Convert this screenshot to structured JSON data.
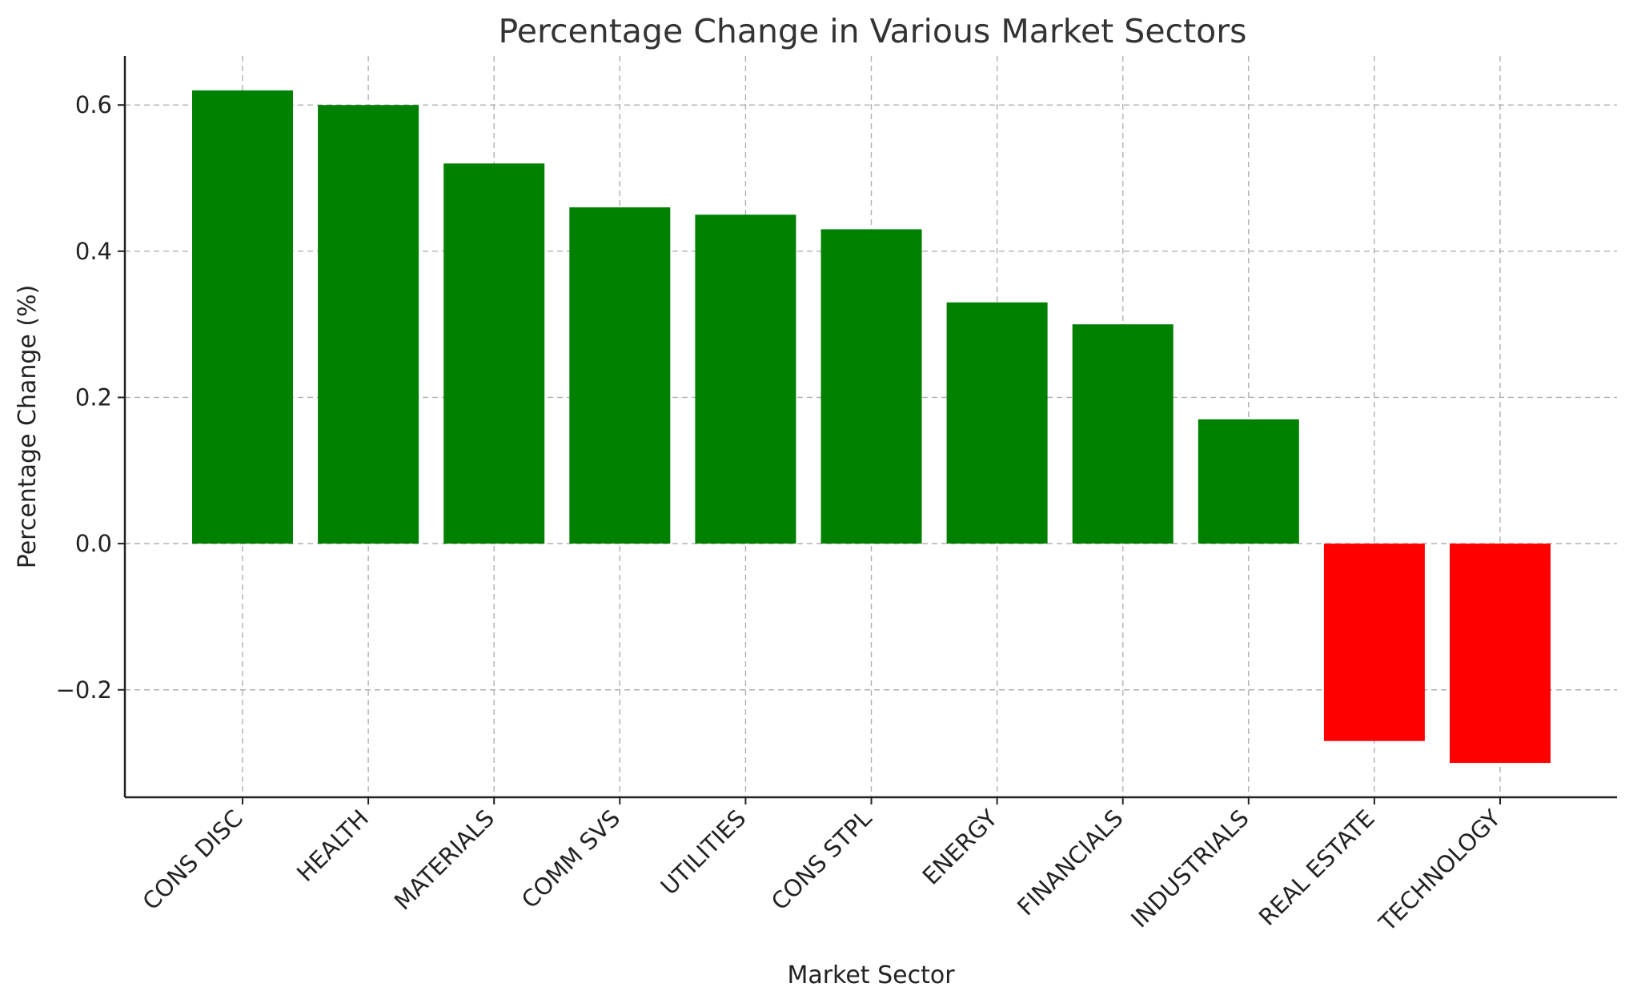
{
  "chart_data": {
    "type": "bar",
    "title": "Percentage Change in Various Market Sectors",
    "xlabel": "Market Sector",
    "ylabel": "Percentage Change (%)",
    "categories": [
      "CONS DISC",
      "HEALTH",
      "MATERIALS",
      "COMM SVS",
      "UTILITIES",
      "CONS STPL",
      "ENERGY",
      "FINANCIALS",
      "INDUSTRIALS",
      "REAL ESTATE",
      "TECHNOLOGY"
    ],
    "values": [
      0.62,
      0.6,
      0.52,
      0.46,
      0.45,
      0.43,
      0.33,
      0.3,
      0.17,
      -0.27,
      -0.3
    ],
    "ylim": [
      -0.347,
      0.667
    ],
    "yticks": [
      -0.2,
      0.0,
      0.2,
      0.4,
      0.6
    ],
    "ytick_labels": [
      "−0.2",
      "0.0",
      "0.2",
      "0.4",
      "0.6"
    ],
    "grid": true,
    "colors": {
      "positive": "#008000",
      "negative": "#ff0000"
    }
  }
}
